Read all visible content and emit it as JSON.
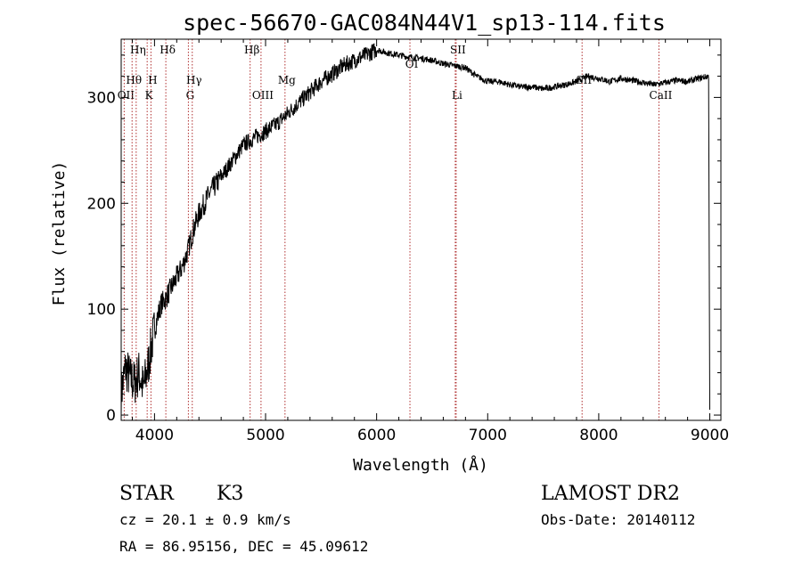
{
  "chart_data": {
    "type": "line",
    "title": "spec-56670-GAC084N44V1_sp13-114.fits",
    "xlabel": "Wavelength (Å)",
    "ylabel": "Flux (relative)",
    "xlim": [
      3700,
      9100
    ],
    "ylim": [
      -5,
      355
    ],
    "xticks": [
      4000,
      5000,
      6000,
      7000,
      8000,
      9000
    ],
    "yticks": [
      0,
      100,
      200,
      300
    ],
    "series": [
      {
        "x": [
          3700,
          3740,
          3780,
          3820,
          3860,
          3900,
          3940,
          3980,
          4020,
          4060,
          4100,
          4150,
          4200,
          4250,
          4300,
          4350,
          4400,
          4450,
          4500,
          4600,
          4700,
          4800,
          4900,
          5000,
          5100,
          5200,
          5300,
          5400,
          5500,
          5600,
          5700,
          5800,
          5900,
          6000,
          6100,
          6200,
          6300,
          6400,
          6500,
          6600,
          6700,
          6800,
          6900,
          7000,
          7100,
          7200,
          7300,
          7400,
          7500,
          7600,
          7700,
          7800,
          7900,
          8000,
          8100,
          8200,
          8300,
          8400,
          8500,
          8600,
          8700,
          8800,
          8900,
          8990,
          9000
        ],
        "y": [
          20,
          45,
          35,
          30,
          40,
          25,
          45,
          70,
          90,
          105,
          110,
          120,
          130,
          140,
          155,
          175,
          190,
          200,
          210,
          225,
          240,
          255,
          262,
          268,
          275,
          285,
          295,
          305,
          315,
          322,
          330,
          335,
          340,
          345,
          342,
          340,
          338,
          337,
          335,
          332,
          330,
          328,
          320,
          315,
          315,
          312,
          310,
          310,
          308,
          310,
          312,
          315,
          320,
          318,
          315,
          318,
          316,
          314,
          312,
          314,
          316,
          315,
          318,
          320,
          5
        ]
      }
    ],
    "lines": [
      {
        "label": "OII",
        "x": 3727,
        "row": 4
      },
      {
        "label": "Hθ",
        "x": 3798,
        "row": 3
      },
      {
        "label": "Hη",
        "x": 3835,
        "row": 1
      },
      {
        "label": "K",
        "x": 3934,
        "row": 4
      },
      {
        "label": "H",
        "x": 3968,
        "row": 3
      },
      {
        "label": "Hδ",
        "x": 4102,
        "row": 1
      },
      {
        "label": "G",
        "x": 4305,
        "row": 4
      },
      {
        "label": "Hγ",
        "x": 4340,
        "row": 3
      },
      {
        "label": "Hβ",
        "x": 4861,
        "row": 1
      },
      {
        "label": "OIII",
        "x": 4959,
        "row": 4
      },
      {
        "label": "Mg",
        "x": 5175,
        "row": 3
      },
      {
        "label": "OI",
        "x": 6300,
        "row": 2
      },
      {
        "label": "SII",
        "x": 6716,
        "row": 1
      },
      {
        "label": "Li",
        "x": 6708,
        "row": 4
      },
      {
        "label": "SII",
        "x": 7850,
        "row": 3
      },
      {
        "label": "CaII",
        "x": 8542,
        "row": 4
      }
    ],
    "grid": false,
    "legend": "none"
  },
  "info": {
    "class_label": "STAR",
    "subclass": "K3",
    "survey": "LAMOST DR2",
    "cz": "cz = 20.1 ± 0.9 km/s",
    "obs_date": "Obs-Date: 20140112",
    "coords": "RA =  86.95156, DEC =  45.09612"
  },
  "colors": {
    "line_marker": "#b03030",
    "spectrum": "#000000"
  }
}
